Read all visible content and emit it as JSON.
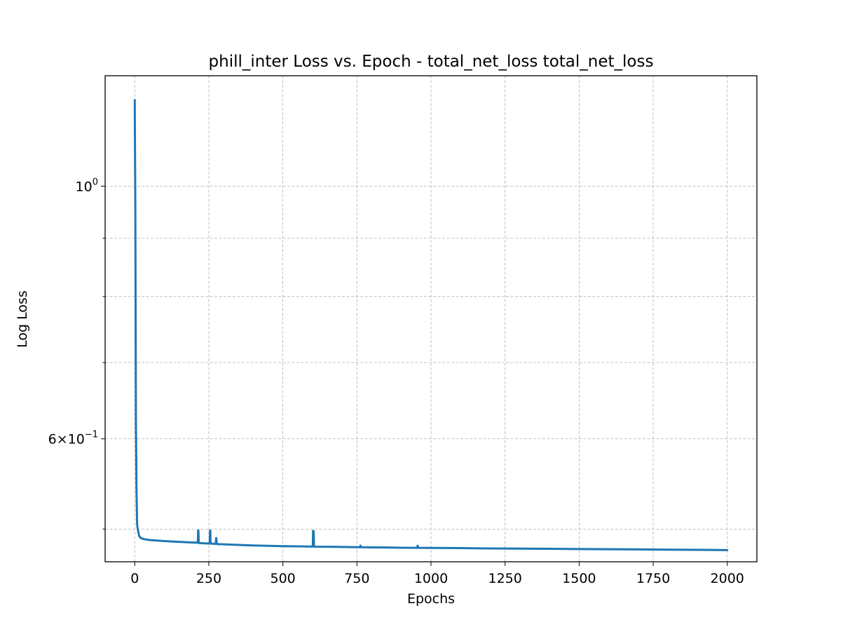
{
  "colors": {
    "series_line": "#1f77b4",
    "background": "#ffffff",
    "grid": "#b0b0b0",
    "axes": "#000000"
  },
  "chart_data": {
    "type": "line",
    "title": "phill_inter Loss vs. Epoch - total_net_loss total_net_loss",
    "xlabel": "Epochs",
    "ylabel": "Log Loss",
    "yscale": "log",
    "grid": true,
    "legend": "none",
    "xlim": [
      -100,
      2100
    ],
    "ylim": [
      0.468,
      1.25
    ],
    "x_ticks": [
      {
        "value": 0,
        "label": "0"
      },
      {
        "value": 250,
        "label": "250"
      },
      {
        "value": 500,
        "label": "500"
      },
      {
        "value": 750,
        "label": "750"
      },
      {
        "value": 1000,
        "label": "1000"
      },
      {
        "value": 1250,
        "label": "1250"
      },
      {
        "value": 1500,
        "label": "1500"
      },
      {
        "value": 1750,
        "label": "1750"
      },
      {
        "value": 2000,
        "label": "2000"
      }
    ],
    "y_major_ticks": [
      {
        "value": 1.0,
        "mantissa": "",
        "exponent": "0"
      },
      {
        "value": 0.6,
        "mantissa": "6",
        "exponent": "−1"
      }
    ],
    "y_minor_ticks": [
      0.5,
      0.7,
      0.8,
      0.9
    ],
    "series": [
      {
        "x": [
          0,
          2,
          4,
          6,
          8,
          10,
          15,
          20,
          30,
          40,
          50,
          75,
          100,
          150,
          200,
          213,
          214,
          215,
          216,
          217,
          230,
          250,
          253,
          254,
          255,
          256,
          257,
          260,
          270,
          273,
          275,
          277,
          279,
          300,
          350,
          400,
          450,
          500,
          550,
          600,
          601,
          602,
          603,
          604,
          605,
          606,
          607,
          650,
          700,
          750,
          760,
          762,
          764,
          800,
          850,
          900,
          950,
          953,
          955,
          957,
          1000,
          1100,
          1165,
          1200,
          1300,
          1400,
          1500,
          1600,
          1700,
          1800,
          1900,
          2000
        ],
        "y": [
          1.19,
          0.95,
          0.62,
          0.54,
          0.505,
          0.5,
          0.493,
          0.491,
          0.49,
          0.4895,
          0.489,
          0.4885,
          0.488,
          0.4872,
          0.4865,
          0.4865,
          0.4985,
          0.4985,
          0.486,
          0.4862,
          0.4858,
          0.4856,
          0.4856,
          0.4985,
          0.4985,
          0.4856,
          0.4856,
          0.4855,
          0.4852,
          0.4852,
          0.491,
          0.4855,
          0.485,
          0.4848,
          0.4842,
          0.4837,
          0.4833,
          0.483,
          0.4828,
          0.4826,
          0.4826,
          0.4982,
          0.4982,
          0.4975,
          0.4826,
          0.4826,
          0.4825,
          0.4824,
          0.4822,
          0.482,
          0.482,
          0.4835,
          0.482,
          0.4818,
          0.4817,
          0.4815,
          0.4814,
          0.4814,
          0.4835,
          0.4814,
          0.4813,
          0.4811,
          0.4809,
          0.4808,
          0.4806,
          0.4804,
          0.4802,
          0.48,
          0.4798,
          0.4796,
          0.4794,
          0.4792
        ]
      }
    ]
  }
}
